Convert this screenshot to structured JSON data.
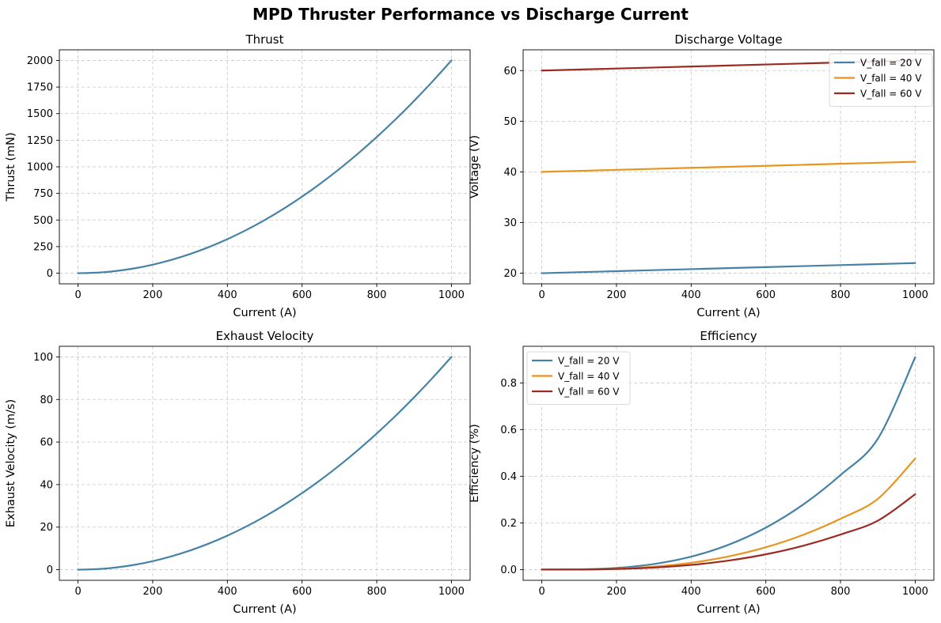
{
  "figure": {
    "title": "MPD Thruster Performance vs Discharge Current"
  },
  "colors": {
    "blue": "#4682a5",
    "orange": "#e8951f",
    "red": "#9c2a23",
    "grid": "#c8c8c8"
  },
  "chart_data": [
    {
      "id": "thrust",
      "type": "line",
      "title": "Thrust",
      "xlabel": "Current (A)",
      "ylabel": "Thrust (mN)",
      "xlim": [
        -50,
        1050
      ],
      "ylim": [
        -100,
        2100
      ],
      "xticks": [
        0,
        200,
        400,
        600,
        800,
        1000
      ],
      "yticks": [
        0,
        250,
        500,
        750,
        1000,
        1250,
        1500,
        1750,
        2000
      ],
      "grid": true,
      "legend": null,
      "series": [
        {
          "color": "#4682a5",
          "x": [
            0,
            50,
            100,
            150,
            200,
            250,
            300,
            350,
            400,
            450,
            500,
            550,
            600,
            650,
            700,
            750,
            800,
            850,
            900,
            950,
            1000
          ],
          "y": [
            0,
            5,
            20,
            45,
            80,
            125,
            180,
            245,
            320,
            405,
            500,
            605,
            720,
            845,
            980,
            1125,
            1280,
            1445,
            1620,
            1805,
            2000
          ]
        }
      ]
    },
    {
      "id": "voltage",
      "type": "line",
      "title": "Discharge Voltage",
      "xlabel": "Current (A)",
      "ylabel": "Voltage (V)",
      "xlim": [
        -50,
        1050
      ],
      "ylim": [
        17.9,
        64.1
      ],
      "xticks": [
        0,
        200,
        400,
        600,
        800,
        1000
      ],
      "yticks": [
        20,
        30,
        40,
        50,
        60
      ],
      "grid": true,
      "legend": "upper-right",
      "series": [
        {
          "name": "V_fall = 20 V",
          "color": "#4682a5",
          "x": [
            0,
            200,
            400,
            600,
            800,
            1000
          ],
          "y": [
            20.0,
            20.4,
            20.8,
            21.2,
            21.6,
            22.0
          ]
        },
        {
          "name": "V_fall = 40 V",
          "color": "#e8951f",
          "x": [
            0,
            200,
            400,
            600,
            800,
            1000
          ],
          "y": [
            40.0,
            40.4,
            40.8,
            41.2,
            41.6,
            42.0
          ]
        },
        {
          "name": "V_fall = 60 V",
          "color": "#9c2a23",
          "x": [
            0,
            200,
            400,
            600,
            800,
            1000
          ],
          "y": [
            60.0,
            60.4,
            60.8,
            61.2,
            61.6,
            62.0
          ]
        }
      ]
    },
    {
      "id": "exhaust",
      "type": "line",
      "title": "Exhaust Velocity",
      "xlabel": "Current (A)",
      "ylabel": "Exhaust Velocity (m/s)",
      "xlim": [
        -50,
        1050
      ],
      "ylim": [
        -5,
        105
      ],
      "xticks": [
        0,
        200,
        400,
        600,
        800,
        1000
      ],
      "yticks": [
        0,
        20,
        40,
        60,
        80,
        100
      ],
      "grid": true,
      "legend": null,
      "series": [
        {
          "color": "#4682a5",
          "x": [
            0,
            50,
            100,
            150,
            200,
            250,
            300,
            350,
            400,
            450,
            500,
            550,
            600,
            650,
            700,
            750,
            800,
            850,
            900,
            950,
            1000
          ],
          "y": [
            0,
            0.25,
            1,
            2.25,
            4,
            6.25,
            9,
            12.25,
            16,
            20.25,
            25,
            30.25,
            36,
            42.25,
            49,
            56.25,
            64,
            72.25,
            81,
            90.25,
            100
          ]
        }
      ]
    },
    {
      "id": "efficiency",
      "type": "line",
      "title": "Efficiency",
      "xlabel": "Current (A)",
      "ylabel": "Efficiency (%)",
      "xlim": [
        -50,
        1050
      ],
      "ylim": [
        -0.046,
        0.957
      ],
      "xticks": [
        0,
        200,
        400,
        600,
        800,
        1000
      ],
      "yticks": [
        0.0,
        0.2,
        0.4,
        0.6,
        0.8
      ],
      "grid": true,
      "legend": "upper-left",
      "series": [
        {
          "name": "V_fall = 20 V",
          "color": "#4682a5",
          "x": [
            0,
            100,
            200,
            300,
            400,
            500,
            600,
            700,
            800,
            900,
            1000
          ],
          "y": [
            0,
            0.0009,
            0.0071,
            0.0237,
            0.0554,
            0.1063,
            0.1798,
            0.2787,
            0.4053,
            0.561,
            0.91
          ]
        },
        {
          "name": "V_fall = 40 V",
          "color": "#e8951f",
          "x": [
            0,
            100,
            200,
            300,
            400,
            500,
            600,
            700,
            800,
            900,
            1000
          ],
          "y": [
            0,
            0.0005,
            0.0038,
            0.0126,
            0.0293,
            0.0563,
            0.0955,
            0.1488,
            0.2178,
            0.3032,
            0.476
          ]
        },
        {
          "name": "V_fall = 60 V",
          "color": "#9c2a23",
          "x": [
            0,
            100,
            200,
            300,
            400,
            500,
            600,
            700,
            800,
            900,
            1000
          ],
          "y": [
            0,
            0.0003,
            0.0026,
            0.0086,
            0.02,
            0.0385,
            0.0654,
            0.1022,
            0.1501,
            0.2097,
            0.323
          ]
        }
      ]
    }
  ]
}
